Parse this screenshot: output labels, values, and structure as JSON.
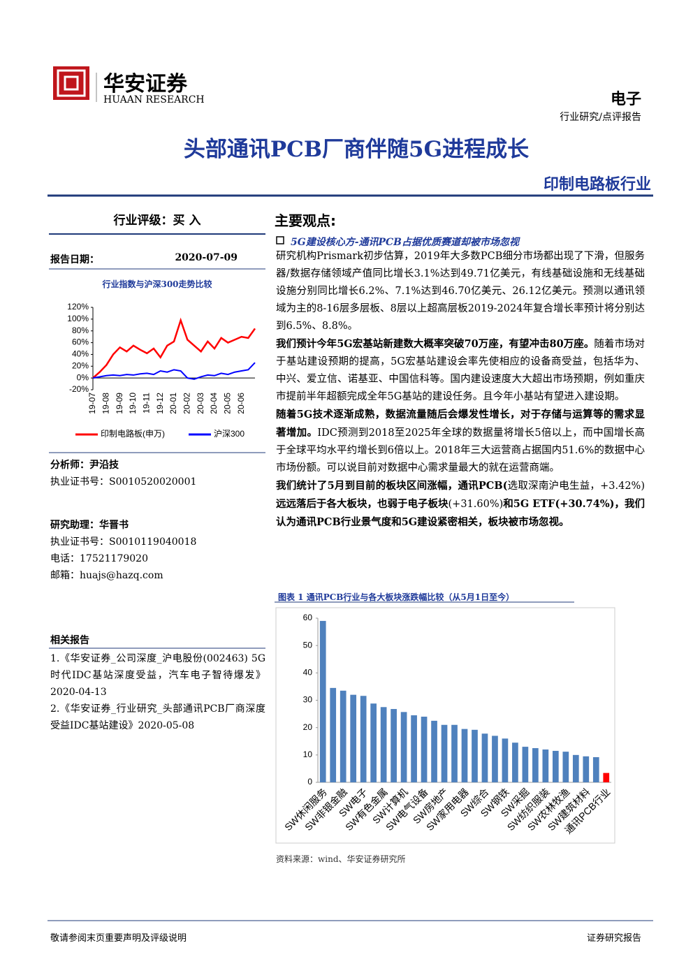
{
  "header": {
    "brand_cn": "华安证券",
    "brand_en": "HUAAN RESEARCH",
    "sector": "电子",
    "report_type": "行业研究/点评报告",
    "title": "头部通讯PCB厂商伴随5G进程成长",
    "industry": "印制电路板行业"
  },
  "sidebar": {
    "rating": "行业评级：买 入",
    "date_label": "报告日期：",
    "date": "2020-07-09",
    "chart_title": "行业指数与沪深300走势比较",
    "analyst": "分析师：尹沿技",
    "analyst_cert": "执业证书号：S0010520020001",
    "assistant": "研究助理：华晋书",
    "assistant_cert": "执业证书号：S0010119040018",
    "phone": "电话：17521179020",
    "email": "邮箱：huajs@hazq.com",
    "related_title": "相关报告",
    "related": [
      "1.《华安证券_公司深度_沪电股份(002463) 5G时代IDC基站深度受益，汽车电子智待爆发》2020-04-13",
      "2.《华安证券_行业研究_头部通讯PCB厂商深度受益IDC基站建设》2020-05-08"
    ]
  },
  "main": {
    "heading": "主要观点:",
    "subheading": "5G建设核心方-通讯PCB占据优质赛道却被市场忽视",
    "paragraphs": [
      [
        {
          "text": "研究机构Prismark初步估算，2019年大多数PCB细分市场都出现了下滑，但服务器/数据存储领域产值同比增长3.1%达到49.71亿美元，有线基础设施和无线基础设施分别同比增长6.2%、7.1%达到46.70亿美元、26.12亿美元。预测以通讯领域为主的8-16层多层板、8层以上超高层板2019-2024年复合增长率预计将分别达到6.5%、8.8%。",
          "bold": false
        }
      ],
      [
        {
          "text": "我们预计今年5G宏基站新建数大概率突破70万座，有望冲击80万座。",
          "bold": true
        },
        {
          "text": "随着市场对于基站建设预期的提高，5G宏基站建设会率先使相应的设备商受益，包括华为、中兴、爱立信、诺基亚、中国信科等。国内建设速度大大超出市场预期，例如重庆市提前半年超额完成全年5G基站的建设任务。且今年小基站有望进入建设期。",
          "bold": false
        }
      ],
      [
        {
          "text": "随着5G技术逐渐成熟，数据流量随后会爆发性增长，对于存储与运算等的需求显著增加。",
          "bold": true
        },
        {
          "text": "IDC预测到2018至2025年全球的数据量将增长5倍以上，而中国增长高于全球平均水平约增长到6倍以上。2018年三大运营商占据国内51.6%的数据中心市场份额。可以说目前对数据中心需求量最大的就在运营商端。",
          "bold": false
        }
      ],
      [
        {
          "text": "我们统计了5月到目前的板块区间涨幅，通讯PCB(",
          "bold": true
        },
        {
          "text": "选取深南沪电生益，+3.42%)",
          "bold": false
        },
        {
          "text": "远远落后于各大板块，也弱于电子板块",
          "bold": true
        },
        {
          "text": "(+31.60%)",
          "bold": false
        },
        {
          "text": "和5G ETF(+30.74%)，我们认为通讯PCB行业景气度和5G建设紧密相关，板块被市场忽视。",
          "bold": true
        }
      ]
    ],
    "figure_title": "图表 1 通讯PCB行业与各大板块涨跌幅比较（从5月1日至今）",
    "source": "资料来源：wind、华安证券研究所"
  },
  "footer": {
    "left": "敬请参阅末页重要声明及评级说明",
    "right": "证券研究报告"
  },
  "chart_data": [
    {
      "type": "line",
      "categories": [
        "19-07",
        null,
        "19-08",
        null,
        "19-09",
        null,
        "19-10",
        null,
        "19-11",
        null,
        "19-12",
        null,
        "20-01",
        null,
        "20-02",
        null,
        "20-03",
        null,
        "20-04",
        null,
        "20-05",
        null,
        "20-06",
        null,
        null
      ],
      "series": [
        {
          "name": "印制电路板(申万)",
          "color": "#ff0000",
          "values": [
            0,
            10,
            22,
            40,
            52,
            45,
            55,
            48,
            42,
            50,
            35,
            55,
            62,
            98,
            65,
            55,
            45,
            62,
            50,
            68,
            60,
            65,
            70,
            68,
            84
          ]
        },
        {
          "name": "沪深300",
          "color": "#0000ff",
          "values": [
            0,
            2,
            4,
            5,
            4,
            6,
            5,
            7,
            8,
            6,
            12,
            10,
            14,
            12,
            0,
            -2,
            2,
            5,
            4,
            8,
            6,
            10,
            12,
            14,
            26
          ]
        }
      ],
      "ylim": [
        -20,
        120
      ],
      "yticks": [
        {
          "value": -20,
          "label": "-20%"
        },
        {
          "value": 0,
          "label": "0%"
        },
        {
          "value": 20,
          "label": "20%"
        },
        {
          "value": 40,
          "label": "40%"
        },
        {
          "value": 60,
          "label": "60%"
        },
        {
          "value": 80,
          "label": "80%"
        },
        {
          "value": 100,
          "label": "100%"
        },
        {
          "value": 120,
          "label": "120%"
        }
      ],
      "legend": "bottom"
    },
    {
      "type": "bar",
      "categories": [
        "SW休闲服务",
        null,
        "SW非银金融",
        null,
        "SW电子",
        null,
        "SW有色金属",
        null,
        "SW计算机",
        null,
        "SW电气设备",
        null,
        "SW房地产",
        null,
        "SW家用电器",
        null,
        "SW综合",
        null,
        "SW钢铁",
        null,
        "SW采掘",
        null,
        "SW纺织服装",
        null,
        "SW农林牧渔",
        null,
        "SW建筑材料",
        null,
        "通讯PCB行业"
      ],
      "values": [
        59,
        34.5,
        33.5,
        32,
        31.6,
        28.8,
        27.5,
        26.8,
        25.7,
        24.5,
        24,
        22.5,
        21,
        21,
        19.5,
        19.2,
        17.8,
        17,
        16,
        14.5,
        13,
        12.5,
        12,
        11.5,
        11.2,
        10,
        9.5,
        9.2,
        3.42
      ],
      "colors": [
        "#4f81bd",
        "#4f81bd",
        "#4f81bd",
        "#4f81bd",
        "#4f81bd",
        "#4f81bd",
        "#4f81bd",
        "#4f81bd",
        "#4f81bd",
        "#4f81bd",
        "#4f81bd",
        "#4f81bd",
        "#4f81bd",
        "#4f81bd",
        "#4f81bd",
        "#4f81bd",
        "#4f81bd",
        "#4f81bd",
        "#4f81bd",
        "#4f81bd",
        "#4f81bd",
        "#4f81bd",
        "#4f81bd",
        "#4f81bd",
        "#4f81bd",
        "#4f81bd",
        "#4f81bd",
        "#4f81bd",
        "#ff0000"
      ],
      "ylim": [
        0,
        60
      ],
      "yticks": [
        0,
        10,
        20,
        30,
        40,
        50,
        60
      ]
    }
  ]
}
